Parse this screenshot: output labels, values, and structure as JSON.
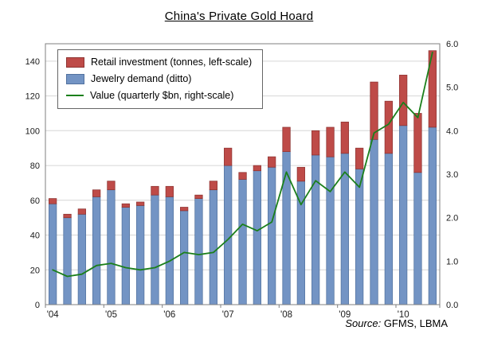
{
  "chart": {
    "title": "China's Private Gold Hoard",
    "source_label": "Source:",
    "source_text": "GFMS, LBMA",
    "legend": [
      {
        "label": "Retail investment (tonnes, left-scale)",
        "swatch": "bar",
        "color": "#BE4B48",
        "border": "#8E3432"
      },
      {
        "label": "Jewelry demand (ditto)",
        "swatch": "bar",
        "color": "#7394C4",
        "border": "#51719F"
      },
      {
        "label": "Value (quarterly $bn, right-scale)",
        "swatch": "line",
        "color": "#1B7F1B",
        "border": "#1B7F1B"
      }
    ]
  },
  "chart_data": {
    "type": "bar",
    "subtype": "stacked-bars-with-line-overlay",
    "title": "China's Private Gold Hoard",
    "x": [
      "2004 Q1",
      "2004 Q2",
      "2004 Q3",
      "2004 Q4",
      "2005 Q1",
      "2005 Q2",
      "2005 Q3",
      "2005 Q4",
      "2006 Q1",
      "2006 Q2",
      "2006 Q3",
      "2006 Q4",
      "2007 Q1",
      "2007 Q2",
      "2007 Q3",
      "2007 Q4",
      "2008 Q1",
      "2008 Q2",
      "2008 Q3",
      "2008 Q4",
      "2009 Q1",
      "2009 Q2",
      "2009 Q3",
      "2009 Q4",
      "2010 Q1",
      "2010 Q2",
      "2010 Q3"
    ],
    "x_tick_labels": [
      "'04",
      "'05",
      "'06",
      "'07",
      "'08",
      "'09",
      "'10"
    ],
    "series": [
      {
        "name": "Jewelry demand (ditto)",
        "type": "bar",
        "stack": true,
        "axis": "left",
        "color": "#7394C4",
        "border": "#51719F",
        "values": [
          58,
          50,
          52,
          62,
          66,
          56,
          57,
          63,
          62,
          54,
          61,
          66,
          80,
          72,
          77,
          79,
          88,
          71,
          86,
          85,
          87,
          78,
          95,
          87,
          103,
          76,
          102
        ]
      },
      {
        "name": "Retail investment (tonnes, left-scale)",
        "type": "bar",
        "stack": true,
        "axis": "left",
        "color": "#BE4B48",
        "border": "#8E3432",
        "values": [
          3,
          2,
          3,
          4,
          5,
          2,
          2,
          5,
          6,
          2,
          2,
          5,
          10,
          4,
          3,
          6,
          14,
          8,
          14,
          17,
          18,
          12,
          33,
          30,
          29,
          34,
          44
        ]
      },
      {
        "name": "Value (quarterly $bn, right-scale)",
        "type": "line",
        "axis": "right",
        "color": "#1B7F1B",
        "values": [
          0.8,
          0.65,
          0.7,
          0.9,
          0.95,
          0.85,
          0.8,
          0.85,
          1.0,
          1.2,
          1.15,
          1.2,
          1.5,
          1.85,
          1.7,
          1.9,
          3.05,
          2.3,
          2.85,
          2.6,
          3.05,
          2.7,
          3.95,
          4.15,
          4.65,
          4.3,
          5.8
        ]
      }
    ],
    "left_axis": {
      "min": 0,
      "max": 150,
      "tick_step": 20,
      "ticks": [
        0,
        20,
        40,
        60,
        80,
        100,
        120,
        140
      ],
      "label": "tonnes"
    },
    "right_axis": {
      "min": 0,
      "max": 6,
      "tick_step": 1,
      "ticks": [
        "0.0",
        "1.0",
        "2.0",
        "3.0",
        "4.0",
        "5.0",
        "6.0"
      ],
      "label": "quarterly $bn"
    },
    "grid": true,
    "legend_position": "top-left-inside",
    "source": "Source: GFMS, LBMA",
    "style": {
      "grid": "#D6D6D6",
      "frame": "#7F7F7F",
      "text": "#1A1A1A"
    }
  }
}
